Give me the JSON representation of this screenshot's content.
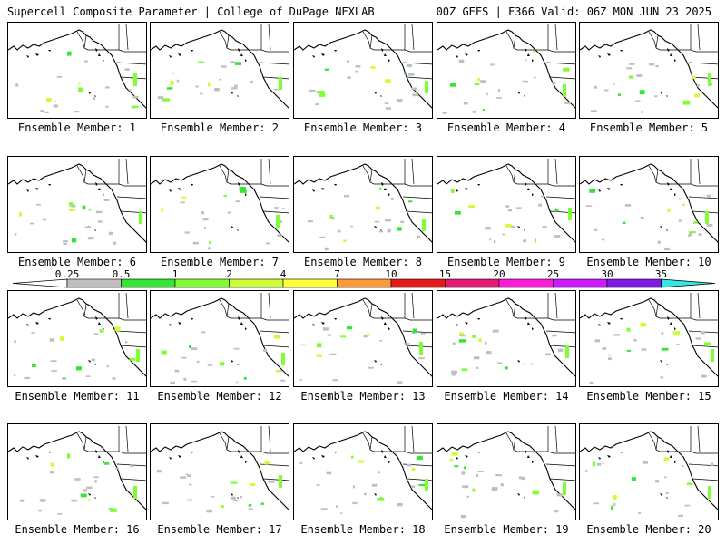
{
  "header": {
    "left_title": "Supercell Composite Parameter | College of DuPage NEXLAB",
    "right_title": "00Z GEFS | F366 Valid: 06Z MON JUN 23 2025"
  },
  "colorbar": {
    "labels": [
      "0.25",
      "0.5",
      "1",
      "2",
      "4",
      "7",
      "10",
      "15",
      "20",
      "25",
      "30",
      "35"
    ],
    "colors": [
      "#bfbfbf",
      "#33e633",
      "#7fff33",
      "#ccff33",
      "#ffff33",
      "#ff9933",
      "#e61919",
      "#e61973",
      "#ff19d9",
      "#cc19ff",
      "#7f19e6",
      "#b366d9",
      "#33e6e6"
    ]
  },
  "panels": [
    {
      "label": "Ensemble Member: 1"
    },
    {
      "label": "Ensemble Member: 2"
    },
    {
      "label": "Ensemble Member: 3"
    },
    {
      "label": "Ensemble Member: 4"
    },
    {
      "label": "Ensemble Member: 5"
    },
    {
      "label": "Ensemble Member: 6"
    },
    {
      "label": "Ensemble Member: 7"
    },
    {
      "label": "Ensemble Member: 8"
    },
    {
      "label": "Ensemble Member: 9"
    },
    {
      "label": "Ensemble Member: 10"
    },
    {
      "label": "Ensemble Member: 11"
    },
    {
      "label": "Ensemble Member: 12"
    },
    {
      "label": "Ensemble Member: 13"
    },
    {
      "label": "Ensemble Member: 14"
    },
    {
      "label": "Ensemble Member: 15"
    },
    {
      "label": "Ensemble Member: 16"
    },
    {
      "label": "Ensemble Member: 17"
    },
    {
      "label": "Ensemble Member: 18"
    },
    {
      "label": "Ensemble Member: 19"
    },
    {
      "label": "Ensemble Member: 20"
    }
  ]
}
